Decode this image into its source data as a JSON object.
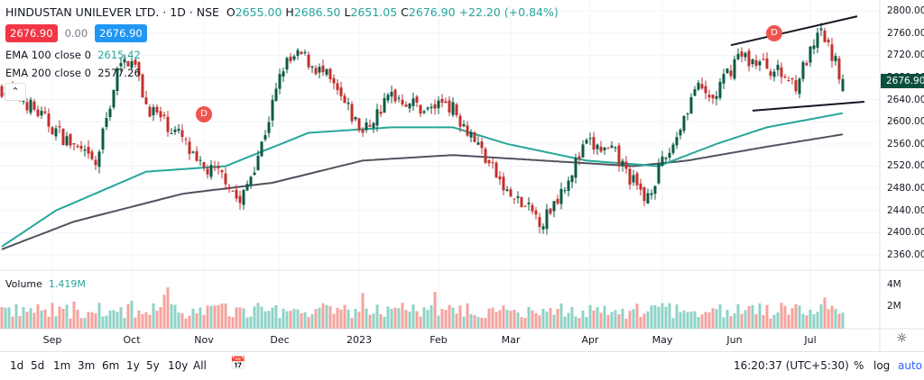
{
  "header": {
    "symbol": "HINDUSTAN UNILEVER LTD. · 1D · NSE",
    "o_label": "O",
    "o": "2655.00",
    "h_label": "H",
    "h": "2686.50",
    "l_label": "L",
    "l": "2651.05",
    "c_label": "C",
    "c": "2676.90",
    "change": "+22.20 (+0.84%)",
    "sell_price": "2676.90",
    "spread": "0.00",
    "buy_price": "2676.90"
  },
  "indicators": {
    "ema100_label": "EMA 100 close 0",
    "ema100_value": "2615.42",
    "ema200_label": "EMA 200 close 0",
    "ema200_value": "2577.26",
    "volume_label": "Volume",
    "volume_value": "1.419M",
    "collapse_icon": "chevron-up-icon"
  },
  "markers": [
    {
      "label": "D",
      "bar": 56,
      "price": 2613
    },
    {
      "label": "D",
      "bar": 214,
      "price": 2760
    }
  ],
  "price_axis": {
    "labels": [
      "2800.00",
      "2760.00",
      "2720.00",
      "2680.00",
      "2640.00",
      "2600.00",
      "2560.00",
      "2520.00",
      "2480.00",
      "2440.00",
      "2400.00",
      "2360.00"
    ],
    "last_price": "2676.90"
  },
  "volume_axis": {
    "labels": [
      "4M",
      "2M"
    ]
  },
  "bottom_bar": {
    "ranges": [
      "1d",
      "5d",
      "1m",
      "3m",
      "6m",
      "1y",
      "5y",
      "10y",
      "All"
    ],
    "time": "16:20:37 (UTC+5:30)",
    "percent": "%",
    "log": "log",
    "auto": "auto"
  },
  "chart_data": {
    "type": "candlestick",
    "title": "HINDUSTAN UNILEVER LTD. 1D NSE",
    "ylim": [
      2340,
      2810
    ],
    "bar_count": 234,
    "x_ticks": [
      {
        "label": "Sep",
        "bar": 14
      },
      {
        "label": "Oct",
        "bar": 36
      },
      {
        "label": "Nov",
        "bar": 56
      },
      {
        "label": "Dec",
        "bar": 77
      },
      {
        "label": "2023",
        "bar": 99
      },
      {
        "label": "Feb",
        "bar": 121
      },
      {
        "label": "Mar",
        "bar": 141
      },
      {
        "label": "Apr",
        "bar": 163
      },
      {
        "label": "May",
        "bar": 183
      },
      {
        "label": "Jun",
        "bar": 203
      },
      {
        "label": "Jul",
        "bar": 224
      }
    ],
    "close_keypoints": [
      [
        0,
        2660
      ],
      [
        6,
        2640
      ],
      [
        14,
        2590
      ],
      [
        26,
        2520
      ],
      [
        32,
        2690
      ],
      [
        36,
        2720
      ],
      [
        40,
        2630
      ],
      [
        50,
        2570
      ],
      [
        54,
        2520
      ],
      [
        62,
        2500
      ],
      [
        66,
        2450
      ],
      [
        72,
        2560
      ],
      [
        78,
        2700
      ],
      [
        83,
        2720
      ],
      [
        90,
        2680
      ],
      [
        100,
        2580
      ],
      [
        108,
        2650
      ],
      [
        118,
        2620
      ],
      [
        123,
        2640
      ],
      [
        130,
        2580
      ],
      [
        140,
        2470
      ],
      [
        150,
        2420
      ],
      [
        162,
        2560
      ],
      [
        170,
        2540
      ],
      [
        178,
        2460
      ],
      [
        186,
        2560
      ],
      [
        192,
        2660
      ],
      [
        197,
        2640
      ],
      [
        204,
        2720
      ],
      [
        212,
        2700
      ],
      [
        220,
        2670
      ],
      [
        227,
        2760
      ],
      [
        233,
        2676.9
      ]
    ],
    "ema100_keypoints": [
      [
        0,
        2375
      ],
      [
        15,
        2440
      ],
      [
        40,
        2510
      ],
      [
        62,
        2520
      ],
      [
        85,
        2580
      ],
      [
        108,
        2590
      ],
      [
        125,
        2590
      ],
      [
        140,
        2560
      ],
      [
        162,
        2530
      ],
      [
        182,
        2520
      ],
      [
        198,
        2560
      ],
      [
        212,
        2590
      ],
      [
        233,
        2615.42
      ]
    ],
    "ema200_keypoints": [
      [
        0,
        2370
      ],
      [
        20,
        2420
      ],
      [
        50,
        2470
      ],
      [
        75,
        2490
      ],
      [
        100,
        2530
      ],
      [
        125,
        2540
      ],
      [
        150,
        2530
      ],
      [
        175,
        2520
      ],
      [
        190,
        2530
      ],
      [
        212,
        2555
      ],
      [
        233,
        2577.26
      ]
    ],
    "trendlines": [
      {
        "from": [
          202,
          2738
        ],
        "to": [
          237,
          2790
        ],
        "name": "upper"
      },
      {
        "from": [
          208,
          2620
        ],
        "to": [
          239,
          2636
        ],
        "name": "lower"
      }
    ],
    "volume_range_millions": [
      0,
      5
    ],
    "last_volume_millions": 1.419,
    "colors": {
      "up": "#0b5a45",
      "down": "#c2302d",
      "ema100": "#26a69a",
      "ema200": "#50535e",
      "vol_up": "#8fd3c7",
      "vol_down": "#f5a39d"
    }
  }
}
